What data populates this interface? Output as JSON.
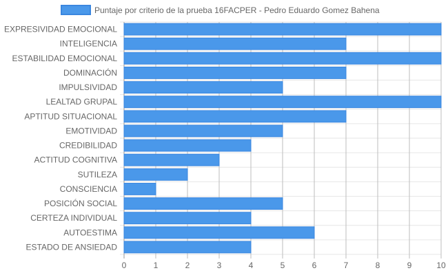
{
  "chart_data": {
    "type": "bar",
    "orientation": "horizontal",
    "categories": [
      "EXPRESIVIDAD EMOCIONAL",
      "INTELIGENCIA",
      "ESTABILIDAD EMOCIONAL",
      "DOMINACIÓN",
      "IMPULSIVIDAD",
      "LEALTAD GRUPAL",
      "APTITUD SITUACIONAL",
      "EMOTIVIDAD",
      "CREDIBILIDAD",
      "ACTITUD COGNITIVA",
      "SUTILEZA",
      "CONSCIENCIA",
      "POSICIÓN SOCIAL",
      "CERTEZA INDIVIDUAL",
      "AUTOESTIMA",
      "ESTADO DE ANSIEDAD"
    ],
    "series": [
      {
        "name": "Puntaje por criterio de la prueba 16FACPER - Pedro Eduardo Gomez Bahena",
        "values": [
          10,
          7,
          10,
          7,
          5,
          10,
          7,
          5,
          4,
          3,
          2,
          1,
          5,
          4,
          6,
          4
        ],
        "color": "#4a98ea",
        "border_color": "#3a86df"
      }
    ],
    "xlim": [
      0,
      10
    ],
    "x_ticks": [
      "0",
      "1",
      "2",
      "3",
      "4",
      "5",
      "6",
      "7",
      "8",
      "9",
      "10"
    ],
    "grid": true,
    "legend_position": "top",
    "grid_color": "#e6e6e6",
    "axis_color": "#999999"
  }
}
